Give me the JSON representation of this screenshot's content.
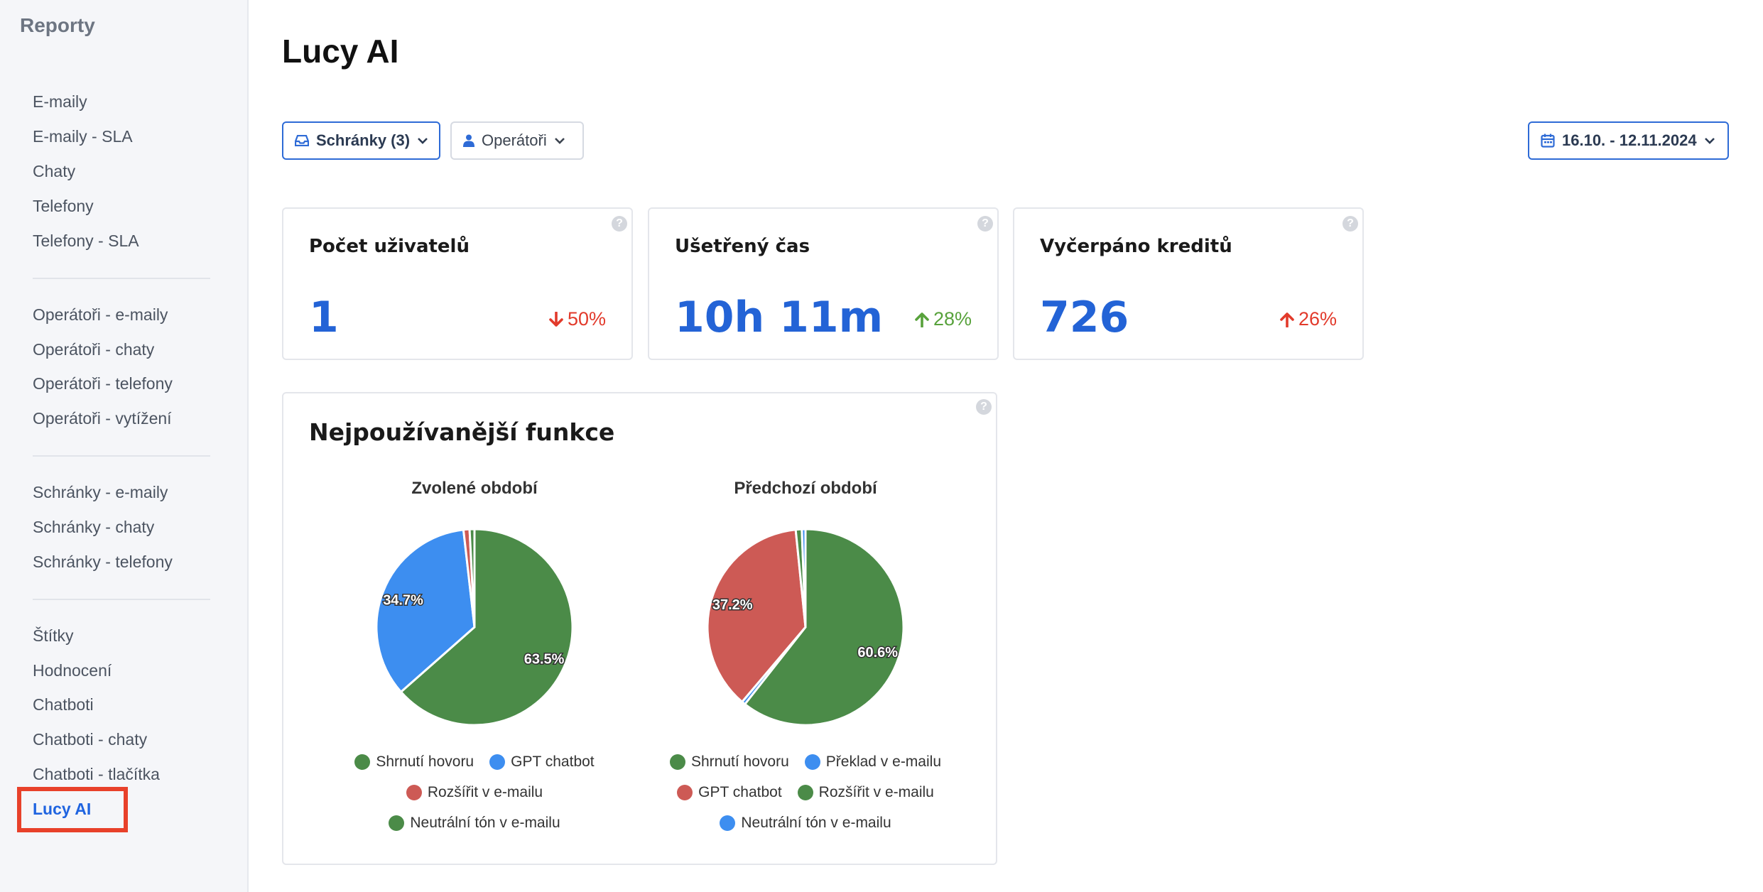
{
  "sidebar": {
    "title": "Reporty",
    "groups": [
      [
        "E-maily",
        "E-maily - SLA",
        "Chaty",
        "Telefony",
        "Telefony - SLA"
      ],
      [
        "Operátoři - e-maily",
        "Operátoři - chaty",
        "Operátoři - telefony",
        "Operátoři - vytížení"
      ],
      [
        "Schránky - e-maily",
        "Schránky - chaty",
        "Schránky - telefony"
      ],
      [
        "Štítky",
        "Hodnocení",
        "Chatboti",
        "Chatboti - chaty",
        "Chatboti - tlačítka",
        "Lucy AI"
      ]
    ],
    "active": "Lucy AI"
  },
  "page": {
    "title": "Lucy AI"
  },
  "filters": {
    "mailboxes": "Schránky (3)",
    "operators": "Operátoři",
    "date_range": "16.10. - 12.11.2024"
  },
  "stats": [
    {
      "label": "Počet uživatelů",
      "value": "1",
      "change": "50%",
      "direction": "down",
      "color": "#e23a2b"
    },
    {
      "label": "Ušetřený čas",
      "value": "10h 11m",
      "change": "28%",
      "direction": "up",
      "color": "#58a23c"
    },
    {
      "label": "Vyčerpáno kreditů",
      "value": "726",
      "change": "26%",
      "direction": "up",
      "color": "#e23a2b"
    }
  ],
  "functions_card": {
    "title": "Nejpoužívanější funkce"
  },
  "colors": {
    "green": "#4b8b48",
    "blue": "#3d8ef0",
    "red": "#cd5a55",
    "accent": "#2363d6"
  },
  "chart_data": [
    {
      "type": "pie",
      "title": "Zvolené období",
      "series": [
        {
          "name": "Shrnutí hovoru",
          "value": 63.5,
          "color": "#4b8b48",
          "label": "63.5%"
        },
        {
          "name": "GPT chatbot",
          "value": 34.7,
          "color": "#3d8ef0",
          "label": "34.7%"
        },
        {
          "name": "Rozšířit v e-mailu",
          "value": 1.0,
          "color": "#cd5a55"
        },
        {
          "name": "Neutrální tón v e-mailu",
          "value": 0.8,
          "color": "#4b8b48"
        }
      ]
    },
    {
      "type": "pie",
      "title": "Předchozí období",
      "series": [
        {
          "name": "Shrnutí hovoru",
          "value": 60.6,
          "color": "#4b8b48",
          "label": "60.6%"
        },
        {
          "name": "Překlad v e-mailu",
          "value": 0.6,
          "color": "#3d8ef0"
        },
        {
          "name": "GPT chatbot",
          "value": 37.2,
          "color": "#cd5a55",
          "label": "37.2%"
        },
        {
          "name": "Rozšířit v e-mailu",
          "value": 1.0,
          "color": "#4b8b48"
        },
        {
          "name": "Neutrální tón v e-mailu",
          "value": 0.6,
          "color": "#3d8ef0"
        }
      ]
    }
  ]
}
